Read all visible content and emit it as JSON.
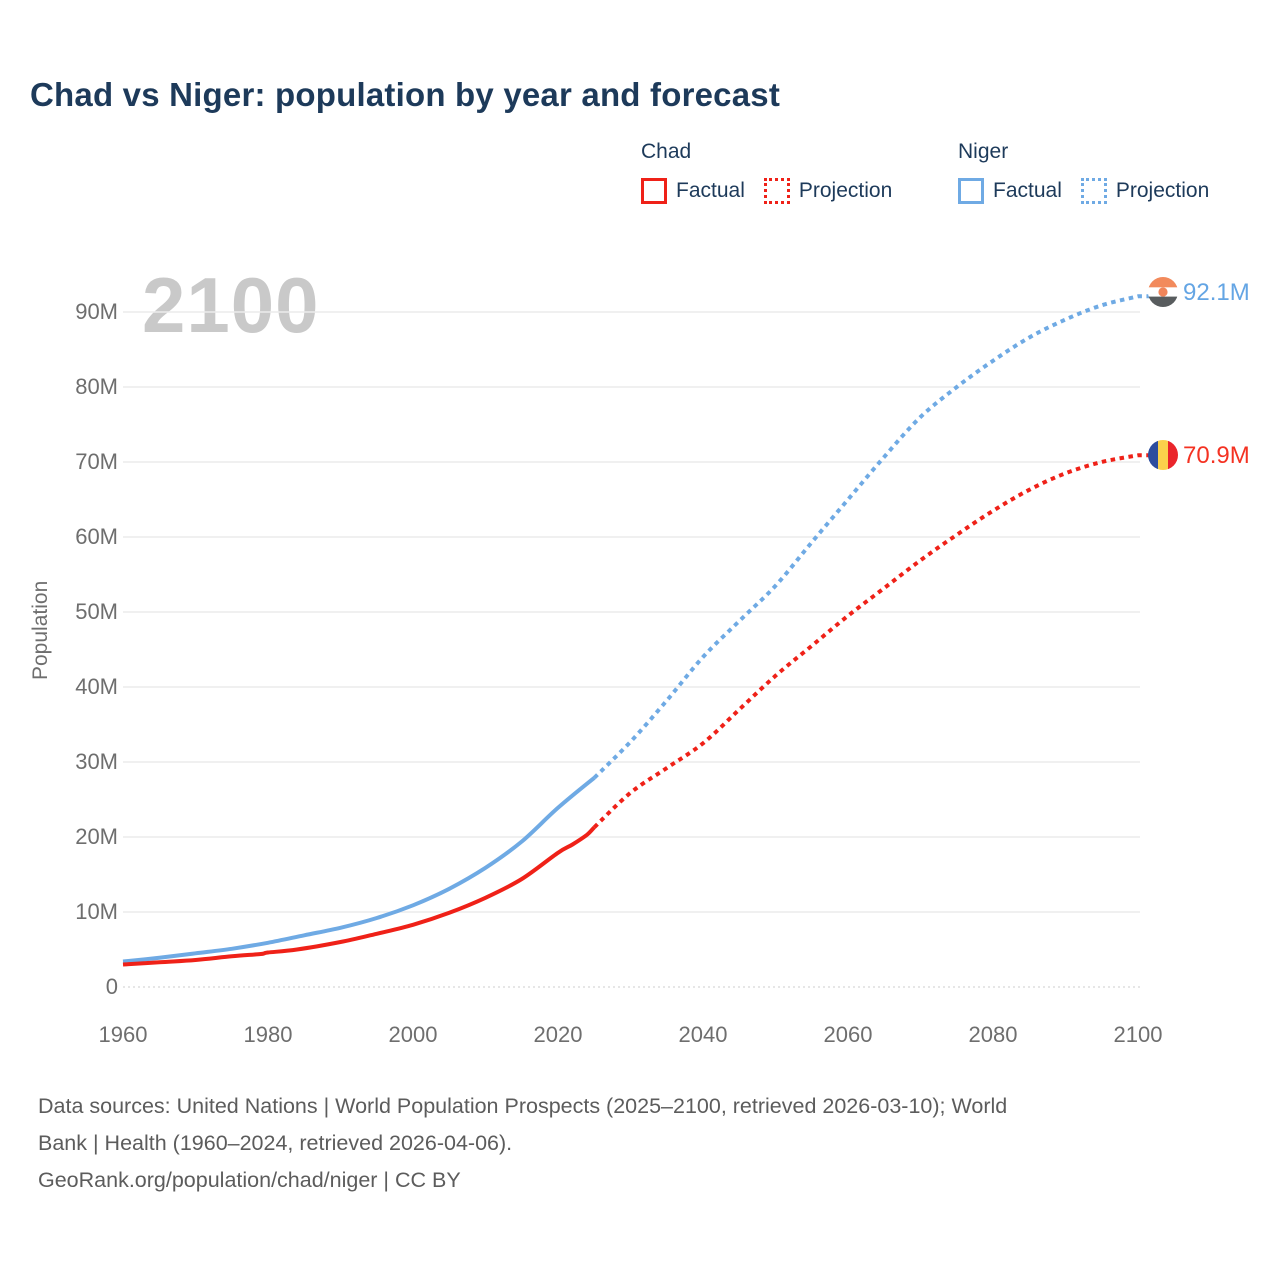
{
  "title": "Chad vs Niger: population by year and forecast",
  "watermark": "2100",
  "legend": {
    "chad": {
      "title": "Chad",
      "factual": "Factual",
      "projection": "Projection"
    },
    "niger": {
      "title": "Niger",
      "factual": "Factual",
      "projection": "Projection"
    }
  },
  "end_labels": {
    "niger": "92.1M",
    "chad": "70.9M"
  },
  "footer": {
    "lines": [
      "Data sources: United Nations | World Population Prospects (2025–2100, retrieved 2026-03-10); World",
      "Bank | Health (1960–2024, retrieved 2026-04-06).",
      "GeoRank.org/population/chad/niger | CC BY"
    ]
  },
  "colors": {
    "title_text": "#1d3a5a",
    "axis_text": "#6e6e6e",
    "footer_text": "#5c5c5c",
    "watermark": "#c9c9c9",
    "gridline": "#ececec",
    "zero_line": "#dedede",
    "chad_red": "#ef2118",
    "chad_label_red": "#f43222",
    "niger_blue": "#6faae4",
    "niger_label_blue": "#64a5e4",
    "niger_flag": {
      "top_orange": "#f28a5c",
      "middle_white": "#ffffff",
      "dot_orange": "#f0855a",
      "bottom_dark": "#585c5e"
    },
    "chad_flag": {
      "blue": "#2d4d9e",
      "yellow": "#fbd24b",
      "red": "#ea252b"
    }
  },
  "chart_data": {
    "type": "line",
    "title": "Chad vs Niger: population by year and forecast",
    "xlabel": "",
    "ylabel": "Population",
    "xlim": [
      1960,
      2100
    ],
    "ylim": [
      0,
      96
    ],
    "grid": "horizontal",
    "legend_position": "top-right",
    "x_ticks": [
      [
        1960,
        "1960"
      ],
      [
        1980,
        "1980"
      ],
      [
        2000,
        "2000"
      ],
      [
        2020,
        "2020"
      ],
      [
        2040,
        "2040"
      ],
      [
        2060,
        "2060"
      ],
      [
        2080,
        "2080"
      ],
      [
        2100,
        "2100"
      ]
    ],
    "y_ticks": [
      [
        0,
        "0"
      ],
      [
        10,
        "10M"
      ],
      [
        20,
        "20M"
      ],
      [
        30,
        "30M"
      ],
      [
        40,
        "40M"
      ],
      [
        50,
        "50M"
      ],
      [
        60,
        "60M"
      ],
      [
        70,
        "70M"
      ],
      [
        80,
        "80M"
      ],
      [
        90,
        "90M"
      ]
    ],
    "unit": "millions",
    "series": [
      {
        "name": "Niger Factual",
        "country": "Niger",
        "kind": "factual",
        "style": "solid",
        "color": "#6faae4",
        "x": [
          1960,
          1965,
          1970,
          1975,
          1980,
          1985,
          1990,
          1995,
          2000,
          2005,
          2010,
          2015,
          2020,
          2025
        ],
        "y": [
          3.4,
          3.9,
          4.5,
          5.1,
          5.9,
          6.9,
          7.9,
          9.2,
          10.9,
          13.1,
          15.9,
          19.4,
          23.9,
          27.9
        ]
      },
      {
        "name": "Niger Projection",
        "country": "Niger",
        "kind": "projection",
        "style": "dashed",
        "color": "#6faae4",
        "x": [
          2025,
          2030,
          2035,
          2040,
          2045,
          2050,
          2055,
          2060,
          2065,
          2070,
          2075,
          2080,
          2085,
          2090,
          2095,
          2100
        ],
        "y": [
          27.9,
          32.7,
          38.2,
          44.0,
          48.8,
          53.5,
          59.3,
          65.0,
          70.7,
          76.0,
          80.0,
          83.5,
          86.6,
          89.0,
          90.9,
          92.1
        ]
      },
      {
        "name": "Chad Factual",
        "country": "Chad",
        "kind": "factual",
        "style": "solid",
        "color": "#ef2118",
        "x": [
          1960,
          1965,
          1970,
          1975,
          1979,
          1980,
          1984,
          1990,
          1995,
          2000,
          2005,
          2010,
          2015,
          2020,
          2022,
          2024,
          2025
        ],
        "y": [
          3.0,
          3.3,
          3.6,
          4.1,
          4.4,
          4.6,
          5.0,
          6.0,
          7.1,
          8.3,
          9.9,
          11.9,
          14.4,
          17.9,
          19.0,
          20.3,
          21.3
        ]
      },
      {
        "name": "Chad Projection",
        "country": "Chad",
        "kind": "projection",
        "style": "dashed",
        "color": "#ef2118",
        "x": [
          2025,
          2030,
          2035,
          2040,
          2045,
          2050,
          2055,
          2060,
          2065,
          2070,
          2075,
          2080,
          2085,
          2090,
          2095,
          2100
        ],
        "y": [
          21.3,
          25.9,
          29.2,
          32.5,
          37.0,
          41.5,
          45.5,
          49.5,
          53.2,
          56.9,
          60.3,
          63.5,
          66.3,
          68.5,
          70.0,
          70.9
        ]
      }
    ],
    "end_values": {
      "Niger": 92.1,
      "Chad": 70.9
    }
  }
}
